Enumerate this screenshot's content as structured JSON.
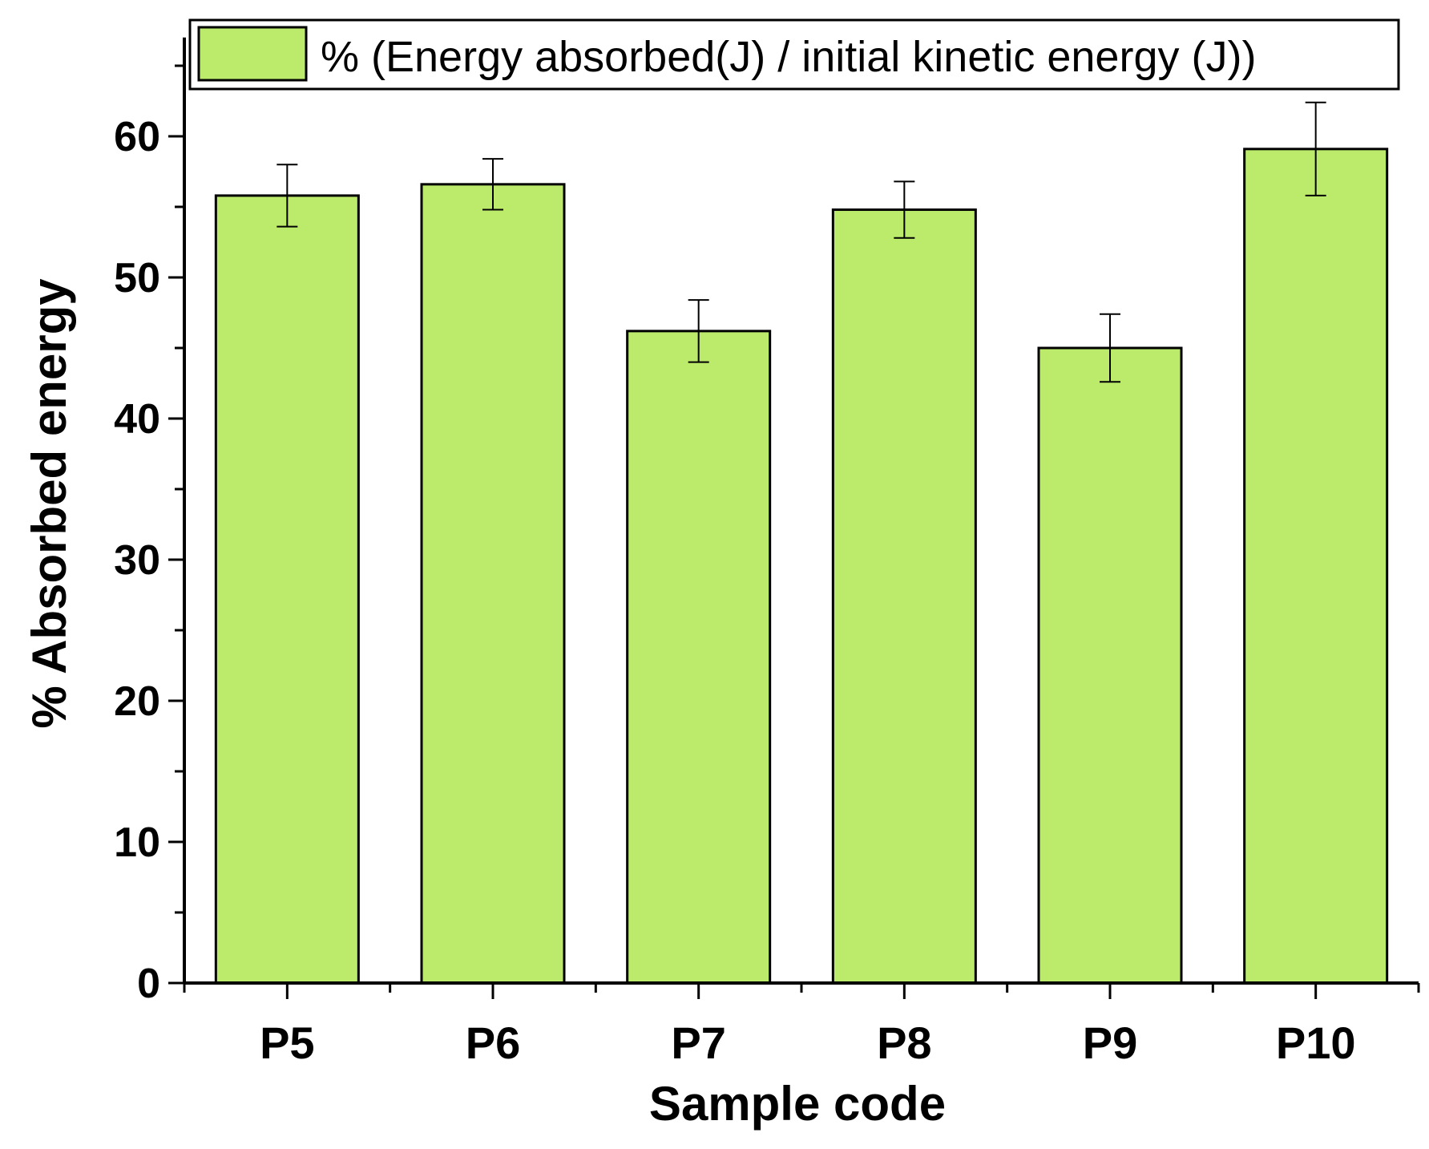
{
  "chart_data": {
    "type": "bar",
    "title": "",
    "xlabel": "Sample code",
    "ylabel": "% Absorbed energy",
    "categories": [
      "P5",
      "P6",
      "P7",
      "P8",
      "P9",
      "P10"
    ],
    "series": [
      {
        "name": "% (Energy absorbed(J) / initial kinetic energy (J))",
        "values": [
          55.8,
          56.6,
          46.2,
          54.8,
          45.0,
          59.1
        ],
        "errors": [
          2.2,
          1.8,
          2.2,
          2.0,
          2.4,
          3.3
        ],
        "color": "#bceb6c"
      }
    ],
    "ylim": [
      0,
      67
    ],
    "yticks": [
      0,
      10,
      20,
      30,
      40,
      50,
      60
    ],
    "legend_position": "top",
    "grid": false
  }
}
